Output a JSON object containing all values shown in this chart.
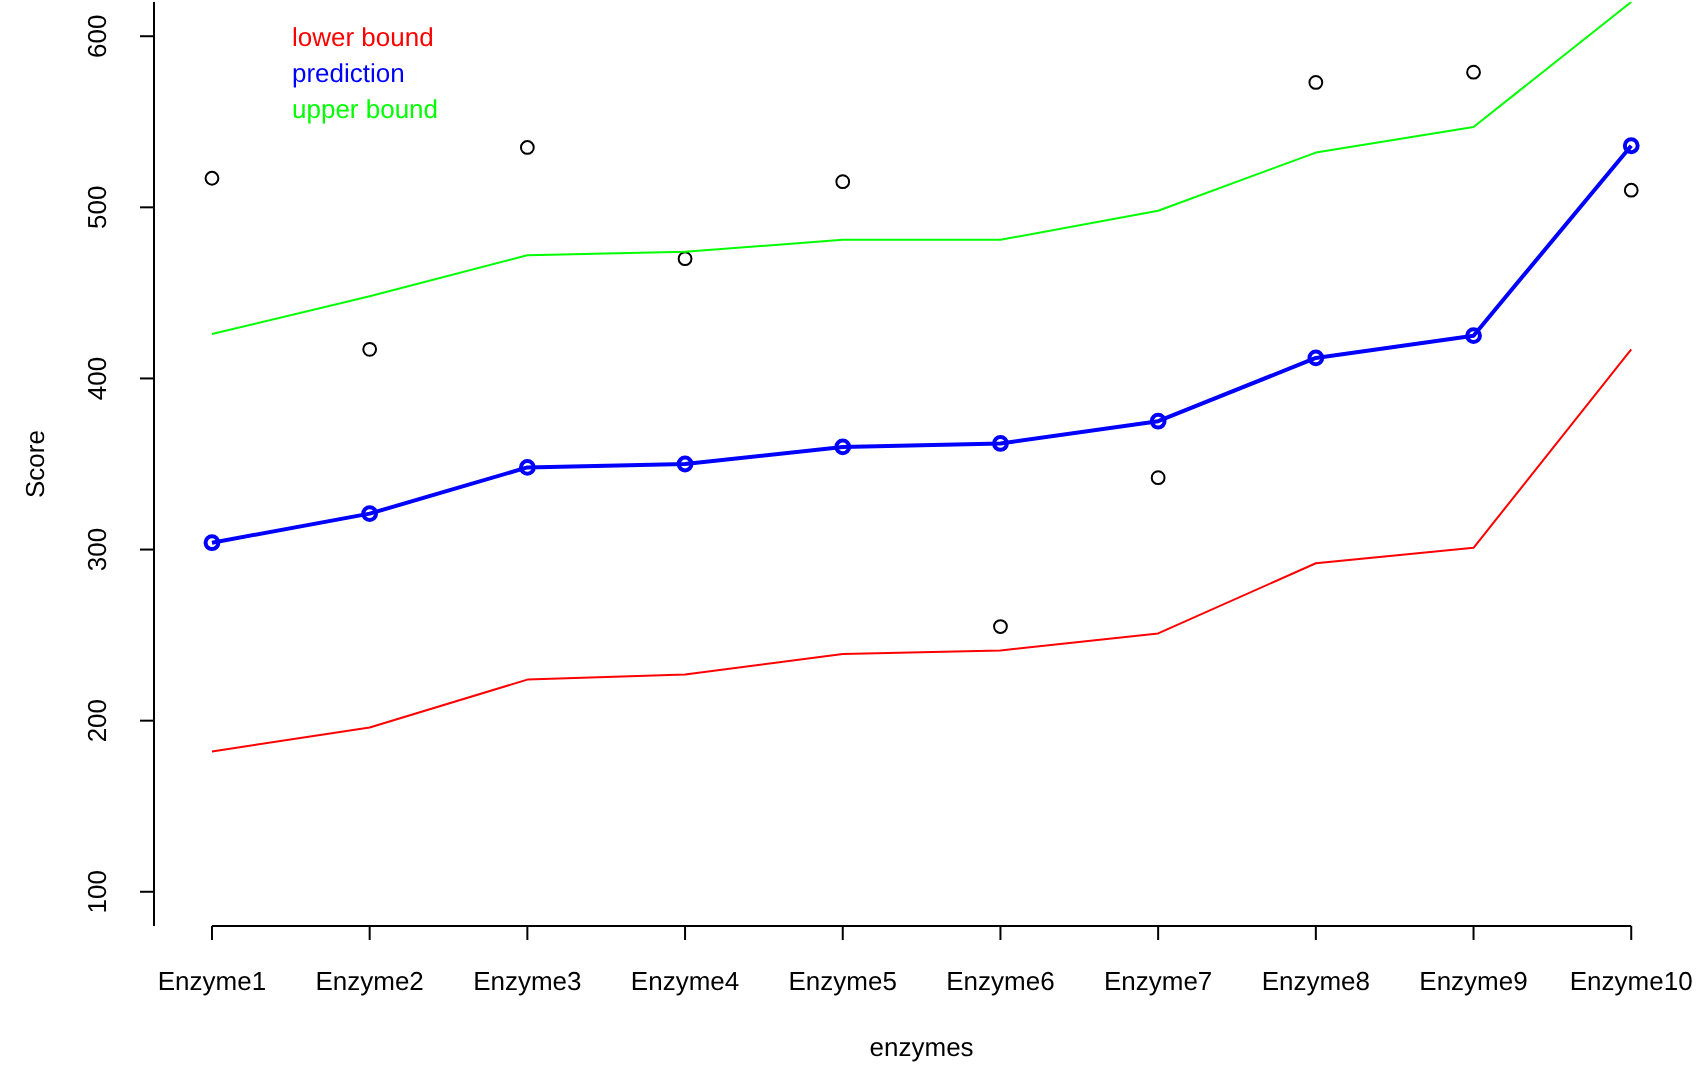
{
  "chart_data": {
    "type": "line",
    "xlabel": "enzymes",
    "ylabel": "Score",
    "categories": [
      "Enzyme1",
      "Enzyme2",
      "Enzyme3",
      "Enzyme4",
      "Enzyme5",
      "Enzyme6",
      "Enzyme7",
      "Enzyme8",
      "Enzyme9",
      "Enzyme10"
    ],
    "ylim": [
      80,
      620
    ],
    "yticks": [
      100,
      200,
      300,
      400,
      500,
      600
    ],
    "grid": false,
    "legend": "top left",
    "series": [
      {
        "type": "scatter",
        "color": "#000000",
        "marker": "circle",
        "values": [
          517,
          417,
          535,
          470,
          515,
          255,
          342,
          573,
          579,
          510
        ]
      },
      {
        "name": "lower bound",
        "color": "#ff0000",
        "marker": "none",
        "values": [
          182,
          196,
          224,
          227,
          239,
          241,
          251,
          292,
          301,
          417
        ]
      },
      {
        "name": "prediction",
        "color": "#0000ff",
        "marker": "circle",
        "values": [
          304,
          321,
          348,
          350,
          360,
          362,
          375,
          412,
          425,
          536
        ]
      },
      {
        "name": "upper bound",
        "color": "#00ff00",
        "marker": "none",
        "values": [
          426,
          448,
          472,
          474,
          481,
          481,
          498,
          532,
          547,
          620
        ]
      }
    ]
  }
}
